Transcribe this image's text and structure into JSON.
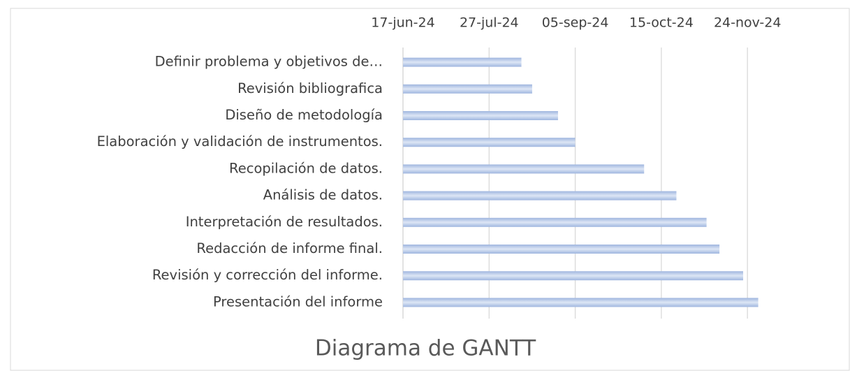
{
  "chart_data": {
    "type": "gantt",
    "title": "Diagrama de GANTT",
    "categories": [
      "Definir problema y objetivos de…",
      "Revisión bibliografica",
      "Diseño de metodología",
      "Elaboración y validación de instrumentos.",
      "Recopilación de datos.",
      "Análisis de datos.",
      "Interpretación de resultados.",
      "Redacción de informe final.",
      "Revisión y corrección del informe.",
      "Presentación del informe"
    ],
    "values": [
      "2024-08-11",
      "2024-08-16",
      "2024-08-28",
      "2024-09-05",
      "2024-10-07",
      "2024-10-22",
      "2024-11-05",
      "2024-11-11",
      "2024-11-22",
      "2024-11-29"
    ],
    "color": "#b4c7e7",
    "xlim": [
      "2024-06-17",
      "2024-12-04"
    ],
    "xticks": [
      {
        "value": "2024-06-17",
        "label": "17-jun-24"
      },
      {
        "value": "2024-07-27",
        "label": "27-jul-24"
      },
      {
        "value": "2024-09-05",
        "label": "05-sep-24"
      },
      {
        "value": "2024-10-15",
        "label": "15-oct-24"
      },
      {
        "value": "2024-11-24",
        "label": "24-nov-24"
      }
    ],
    "grid": true
  }
}
